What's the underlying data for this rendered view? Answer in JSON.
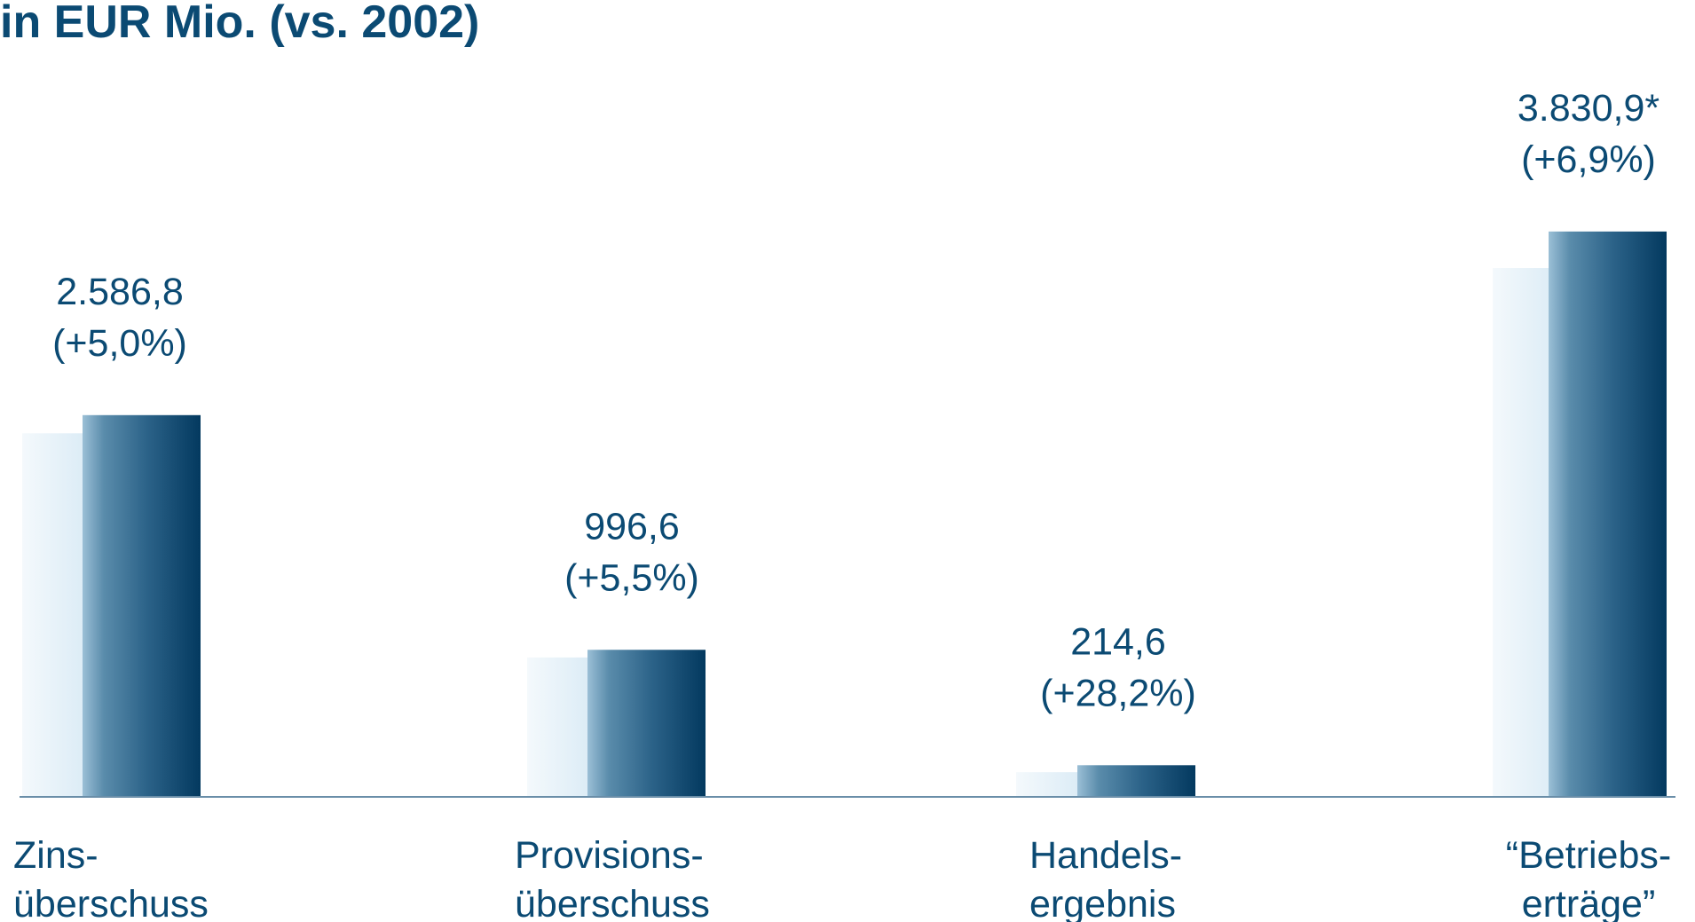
{
  "chart_data": {
    "type": "bar",
    "title": "in EUR Mio. (vs. 2002)",
    "categories": [
      {
        "line1": "Zins-",
        "line2": "überschuss"
      },
      {
        "line1": "Provisions-",
        "line2": "überschuss"
      },
      {
        "line1": "Handels-",
        "line2": "ergebnis"
      },
      {
        "line1": "“Betriebs-",
        "line2": "erträge”"
      }
    ],
    "series": [
      {
        "values": [
          2463.6,
          944.7,
          167.4,
          3583.6
        ]
      },
      {
        "values": [
          2586.8,
          996.6,
          214.6,
          3830.9
        ]
      }
    ],
    "value_labels": [
      {
        "value": "2.586,8",
        "change": "(+5,0%)"
      },
      {
        "value": "996,6",
        "change": "(+5,5%)"
      },
      {
        "value": "214,6",
        "change": "(+28,2%)"
      },
      {
        "value": "3.830,9*",
        "change": "(+6,9%)"
      }
    ],
    "ylim": [
      0,
      4600
    ],
    "grid": false,
    "colors": {
      "previous_year": "#e2eff8",
      "current_year": "#0b4a73",
      "text": "#0b4a73",
      "axis": "#6a8ea8"
    }
  }
}
